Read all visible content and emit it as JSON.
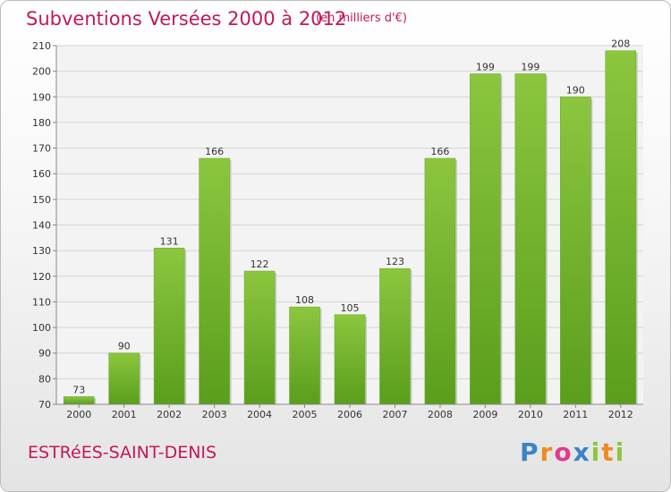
{
  "header": {
    "title": "Subventions Versées 2000 à 2012",
    "subtitle": "(en milliers d'€)"
  },
  "footer": {
    "place": "ESTRéES-SAINT-DENIS",
    "brand": {
      "text": "Proxiti",
      "letters": [
        "P",
        "r",
        "o",
        "x",
        "i",
        "t",
        "i"
      ],
      "letter_colors": [
        "#3a84c5",
        "#f08a24",
        "#e13a8d",
        "#3a84c5",
        "#8cc63f",
        "#f08a24",
        "#8cc63f"
      ]
    }
  },
  "chart_data": {
    "type": "bar",
    "categories": [
      "2000",
      "2001",
      "2002",
      "2003",
      "2004",
      "2005",
      "2006",
      "2007",
      "2008",
      "2009",
      "2010",
      "2011",
      "2012"
    ],
    "values": [
      73,
      90,
      131,
      166,
      122,
      108,
      105,
      123,
      166,
      199,
      199,
      190,
      208
    ],
    "title": "Subventions Versées 2000 à 2012",
    "subtitle": "(en milliers d'€)",
    "xlabel": "",
    "ylabel": "",
    "ylim": [
      70,
      210
    ],
    "yticks": [
      70,
      80,
      90,
      100,
      110,
      120,
      130,
      140,
      150,
      160,
      170,
      180,
      190,
      200,
      210
    ],
    "grid": true,
    "data_labels": true,
    "bar_color": "#8cc63f",
    "bar_color_dark": "#5a9e1c"
  }
}
